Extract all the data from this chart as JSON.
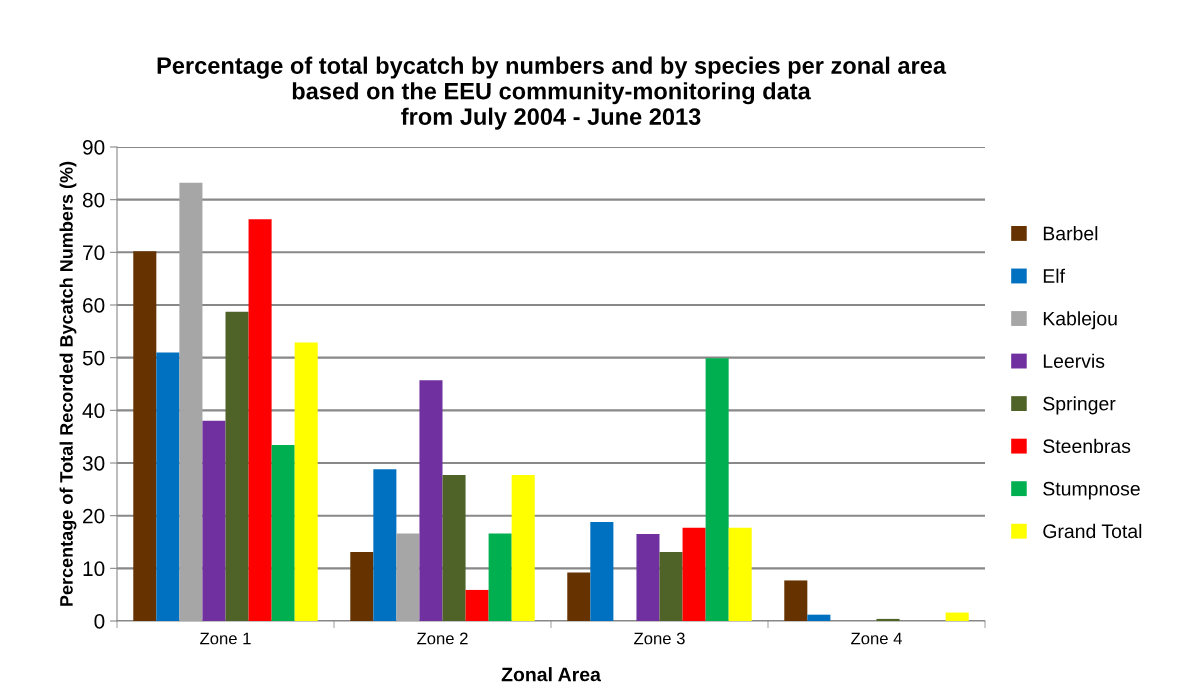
{
  "chart_data": {
    "type": "bar",
    "title": "Percentage of total bycatch by numbers and by species per zonal area\nbased on the EEU community-monitoring data\nfrom July 2004 - June 2013",
    "xlabel": "Zonal Area",
    "ylabel": "Percentage of Total Recorded Bycatch Numbers (%)",
    "categories": [
      "Zone 1",
      "Zone 2",
      "Zone 3",
      "Zone 4"
    ],
    "series": [
      {
        "name": "Barbel",
        "color": "#663300",
        "values": [
          70.2,
          13.1,
          9.2,
          7.7
        ]
      },
      {
        "name": "Elf",
        "color": "#0070c0",
        "values": [
          51.0,
          28.8,
          18.8,
          1.2
        ]
      },
      {
        "name": "Kablejou",
        "color": "#a6a6a6",
        "values": [
          83.2,
          16.6,
          0,
          0
        ]
      },
      {
        "name": "Leervis",
        "color": "#7030a0",
        "values": [
          38.0,
          45.7,
          16.5,
          0
        ]
      },
      {
        "name": "Springer",
        "color": "#4f6228",
        "values": [
          58.7,
          27.7,
          13.1,
          0.4
        ]
      },
      {
        "name": "Steenbras",
        "color": "#ff0000",
        "values": [
          76.3,
          5.9,
          17.7,
          0
        ]
      },
      {
        "name": "Stumpnose",
        "color": "#00b050",
        "values": [
          33.4,
          16.6,
          49.9,
          0
        ]
      },
      {
        "name": "Grand Total",
        "color": "#ffff00",
        "values": [
          52.9,
          27.7,
          17.7,
          1.6
        ]
      }
    ],
    "ylim": [
      0,
      90
    ],
    "yticks": [
      0,
      10,
      20,
      30,
      40,
      50,
      60,
      70,
      80,
      90
    ],
    "grid": "y",
    "legend": "right"
  }
}
